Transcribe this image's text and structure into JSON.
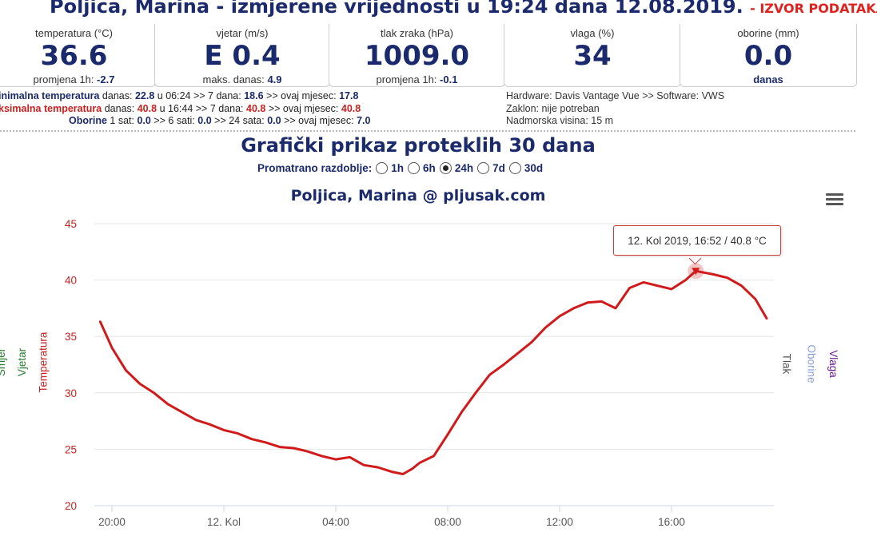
{
  "header": {
    "title": "Poljica, Marina - izmjerene vrijednosti u 19:24 dana 12.08.2019.",
    "source_link": "- IZVOR PODATAKA"
  },
  "cards": [
    {
      "label": "temperatura (°C)",
      "value": "36.6",
      "sub_label": "promjena 1h:",
      "sub_value": "-2.7"
    },
    {
      "label": "vjetar (m/s)",
      "value": "E 0.4",
      "sub_label": "maks. danas:",
      "sub_value": "4.9"
    },
    {
      "label": "tlak zraka (hPa)",
      "value": "1009.0",
      "sub_label": "promjena 1h:",
      "sub_value": "-0.1"
    },
    {
      "label": "vlaga (%)",
      "value": "34",
      "sub_label": "",
      "sub_value": ""
    },
    {
      "label": "oborine (mm)",
      "value": "0.0",
      "sub_label": "",
      "sub_value": "danas"
    }
  ],
  "stats": {
    "min_label": "inimalna temperatura",
    "min_text1": "danas:",
    "min_v1": "22.8",
    "min_text2": "u 06:24 >> 7 dana:",
    "min_v2": "18.6",
    "min_text3": ">> ovaj mjesec:",
    "min_v3": "17.8",
    "max_label": "ksimalna temperatura",
    "max_text1": "danas:",
    "max_v1": "40.8",
    "max_text2": "u 16:44 >> 7 dana:",
    "max_v2": "40.8",
    "max_text3": ">> ovaj mjesec:",
    "max_v3": "40.8",
    "rain_label": "Oborine",
    "rain_text1": "1 sat:",
    "rain_v1": "0.0",
    "rain_text2": ">> 6 sati:",
    "rain_v2": "0.0",
    "rain_text3": ">> 24 sata:",
    "rain_v3": "0.0",
    "rain_text4": ">> ovaj mjesec:",
    "rain_v4": "7.0",
    "hardware": "Hardware: Davis Vantage Vue >> Software: VWS",
    "shelter": "Zaklon: nije potreban",
    "altitude": "Nadmorska visina: 15 m"
  },
  "section_title": "Grafički prikaz proteklih 30 dana",
  "period": {
    "label": "Promatrano razdoblje:",
    "options": [
      "1h",
      "6h",
      "24h",
      "7d",
      "30d"
    ],
    "selected": "24h"
  },
  "chart_title": "Poljica, Marina @ pljusak.com",
  "colors": {
    "navy": "#1a2a6c",
    "red": "#c8221f",
    "series": "#d11a1a"
  },
  "chart_data": {
    "type": "line",
    "title": "Poljica, Marina @ pljusak.com",
    "ylabel": "Temperatura",
    "ylim": [
      20,
      45
    ],
    "yticks": [
      "20",
      "25",
      "30",
      "35",
      "40",
      "45"
    ],
    "xticks": [
      "20:00",
      "12. Kol",
      "04:00",
      "08:00",
      "12:00",
      "16:00"
    ],
    "right_axis_labels": [
      "Tlak",
      "Oborine",
      "Vlaga"
    ],
    "left_axis_labels": [
      "Smjer",
      "Vjetar",
      "Temperatura"
    ],
    "tooltip": "12. Kol 2019, 16:52 / 40.8 °C",
    "series": [
      {
        "name": "Temperatura",
        "x": [
          "19:35",
          "20:00",
          "20:30",
          "21:00",
          "21:30",
          "22:00",
          "22:30",
          "23:00",
          "23:30",
          "00:00",
          "00:30",
          "01:00",
          "01:30",
          "02:00",
          "02:30",
          "03:00",
          "03:30",
          "04:00",
          "04:30",
          "05:00",
          "05:30",
          "06:00",
          "06:24",
          "06:45",
          "07:00",
          "07:30",
          "08:00",
          "08:30",
          "09:00",
          "09:30",
          "10:00",
          "10:30",
          "11:00",
          "11:30",
          "12:00",
          "12:30",
          "13:00",
          "13:30",
          "14:00",
          "14:30",
          "15:00",
          "15:30",
          "16:00",
          "16:30",
          "16:52",
          "17:30",
          "18:00",
          "18:30",
          "19:00",
          "19:24"
        ],
        "values": [
          36.3,
          34.0,
          32.0,
          30.8,
          30.0,
          29.0,
          28.3,
          27.6,
          27.2,
          26.7,
          26.4,
          25.9,
          25.6,
          25.2,
          25.1,
          24.8,
          24.4,
          24.1,
          24.3,
          23.6,
          23.4,
          23.0,
          22.8,
          23.3,
          23.8,
          24.4,
          26.3,
          28.3,
          30.0,
          31.6,
          32.5,
          33.5,
          34.5,
          35.8,
          36.8,
          37.5,
          38.0,
          38.1,
          37.5,
          39.3,
          39.8,
          39.5,
          39.2,
          40.0,
          40.8,
          40.5,
          40.2,
          39.5,
          38.3,
          36.6
        ]
      }
    ]
  }
}
